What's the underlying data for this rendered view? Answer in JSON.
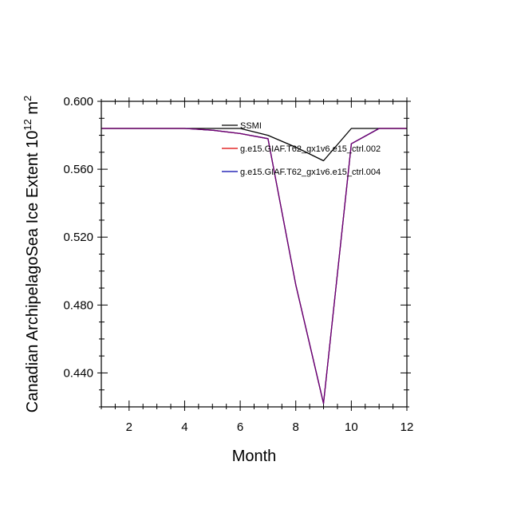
{
  "chart_data": {
    "type": "line",
    "title": "",
    "xlabel": "Month",
    "ylabel": "Canadian ArchipelagoSea Ice Extent 10",
    "ylabel_sup_exp": "12",
    "ylabel_unit": " m",
    "ylabel_unit_sup": "2",
    "xlim": [
      1,
      12
    ],
    "ylim": [
      0.42,
      0.6
    ],
    "xticks": [
      2,
      4,
      6,
      8,
      10,
      12
    ],
    "xtick_labels": [
      "2",
      "4",
      "6",
      "8",
      "10",
      "12"
    ],
    "yticks": [
      0.44,
      0.48,
      0.52,
      0.56,
      0.6
    ],
    "ytick_labels": [
      "0.440",
      "0.480",
      "0.520",
      "0.560",
      "0.600"
    ],
    "grid": false,
    "legend_position": "top-right",
    "x": [
      1,
      2,
      3,
      4,
      5,
      6,
      7,
      8,
      9,
      10,
      11,
      12
    ],
    "series": [
      {
        "name": "SSMI",
        "color": "#000000",
        "values": [
          0.584,
          0.584,
          0.584,
          0.584,
          0.584,
          0.584,
          0.58,
          0.573,
          0.565,
          0.584,
          0.584,
          0.584
        ]
      },
      {
        "name": "g.e15.GIAF.T62_gx1v6.e15_ctrl.002",
        "color": "#dd0000",
        "values": [
          0.584,
          0.584,
          0.584,
          0.584,
          0.583,
          0.581,
          0.578,
          0.492,
          0.422,
          0.575,
          0.584,
          0.584
        ]
      },
      {
        "name": "g.e15.GIAF.T62_gx1v6.e15_ctrl.004",
        "color": "#0000aa",
        "values": [
          0.584,
          0.584,
          0.584,
          0.584,
          0.583,
          0.581,
          0.578,
          0.492,
          0.422,
          0.575,
          0.584,
          0.584
        ]
      }
    ]
  }
}
